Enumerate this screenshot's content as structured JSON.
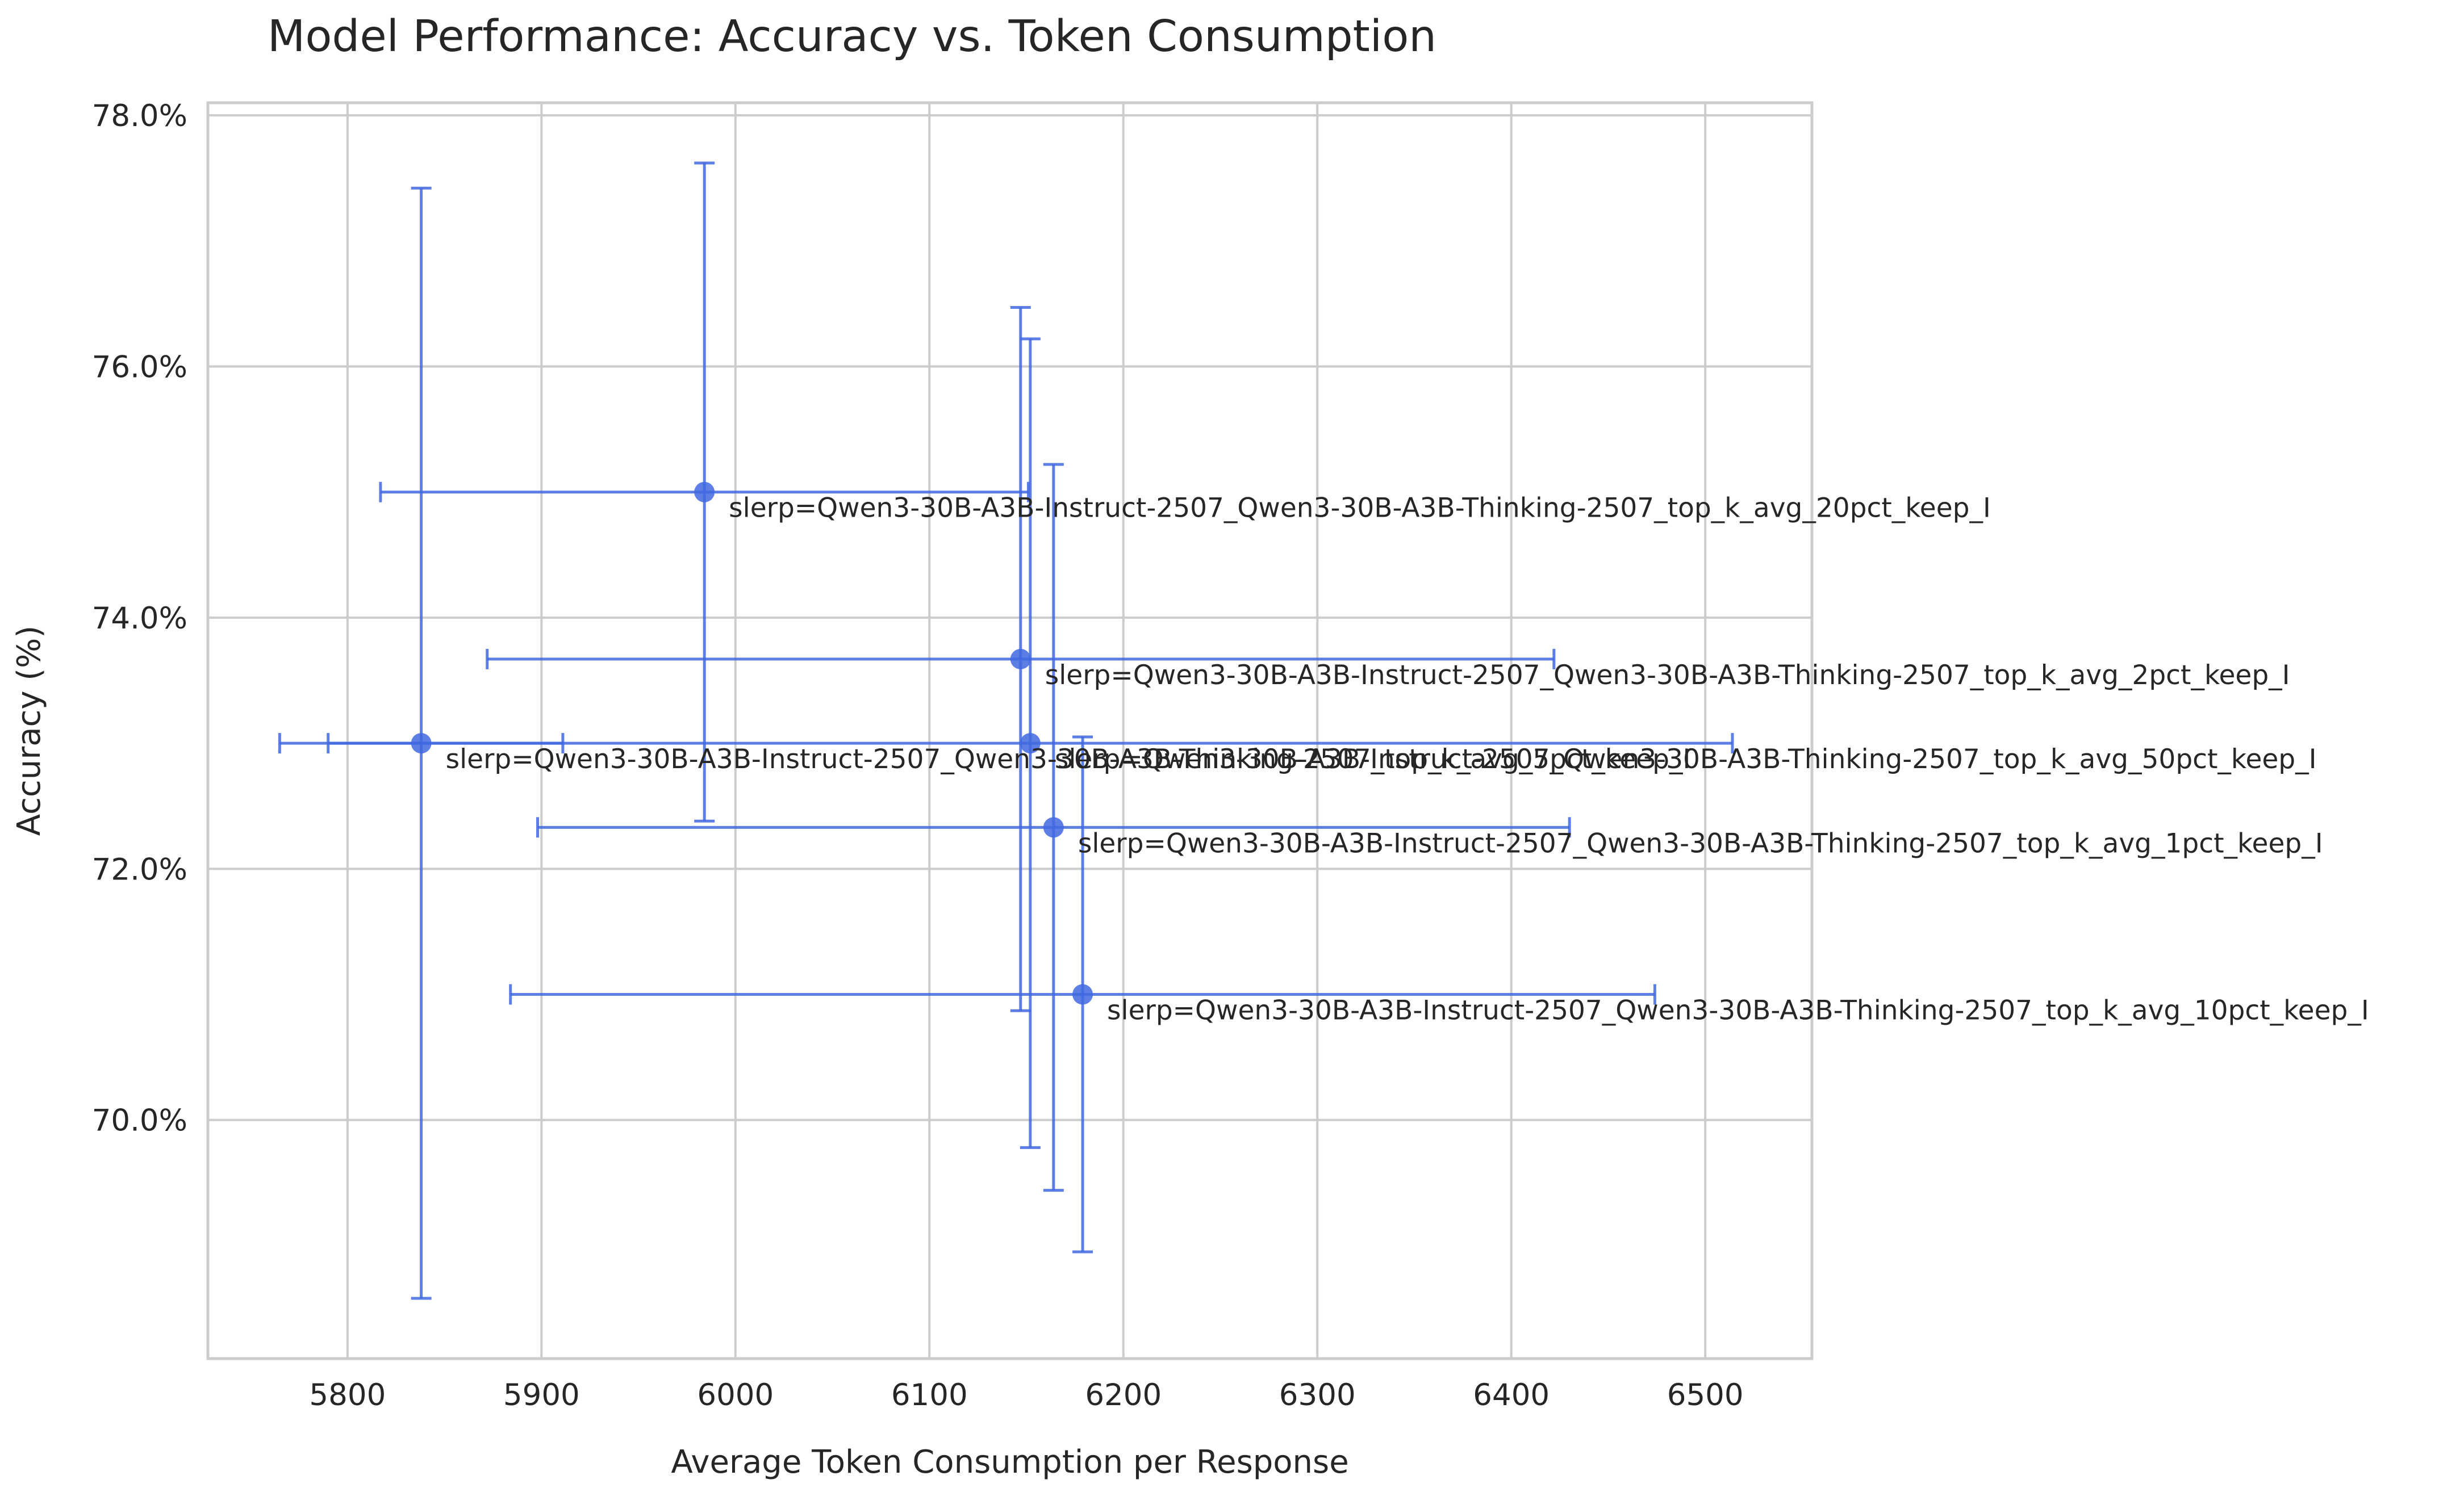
{
  "chart_data": {
    "type": "scatter",
    "title": "Model Performance: Accuracy vs. Token Consumption",
    "xlabel": "Average Token Consumption per Response",
    "ylabel": "Accuracy (%)",
    "xlim": [
      5728,
      6555
    ],
    "ylim": [
      68.1,
      78.1
    ],
    "xticks": [
      5800,
      5900,
      6000,
      6100,
      6200,
      6300,
      6400,
      6500
    ],
    "yticks": [
      70.0,
      72.0,
      74.0,
      76.0,
      78.0
    ],
    "ytick_suffix": "%",
    "grid": true,
    "color": "#4169e1",
    "points": [
      {
        "label": "slerp=Qwen3-30B-A3B-Instruct-2507_Qwen3-30B-A3B-Thinking-2507_top_k_avg_20pct_keep_I",
        "x": 5984,
        "y": 75.0,
        "x_err": 167,
        "y_err": 2.62
      },
      {
        "label": "slerp=Qwen3-30B-A3B-Instruct-2507_Qwen3-30B-A3B-Thinking-2507_top_k_avg_2pct_keep_I",
        "x": 6147,
        "y": 73.67,
        "x_err": 275,
        "y_err": 2.8
      },
      {
        "label": "slerp=Qwen3-30B-A3B-Instruct-2507_Qwen3-30B-A3B-Thinking-2507_top_k_avg_5pct_keep_I",
        "x": 5838,
        "y": 73.0,
        "x_err": 73,
        "y_err": 4.42
      },
      {
        "label": "slerp=Qwen3-30B-A3B-Instruct-2507_Qwen3-30B-A3B-Thinking-2507_top_k_avg_50pct_keep_I",
        "x": 6152,
        "y": 73.0,
        "x_err": 362,
        "y_err": 3.22
      },
      {
        "label": "slerp=Qwen3-30B-A3B-Instruct-2507_Qwen3-30B-A3B-Thinking-2507_top_k_avg_1pct_keep_I",
        "x": 6164,
        "y": 72.33,
        "x_err": 266,
        "y_err": 2.89
      },
      {
        "label": "slerp=Qwen3-30B-A3B-Instruct-2507_Qwen3-30B-A3B-Thinking-2507_top_k_avg_10pct_keep_I",
        "x": 6179,
        "y": 71.0,
        "x_err": 295,
        "y_err": 2.05
      }
    ]
  }
}
